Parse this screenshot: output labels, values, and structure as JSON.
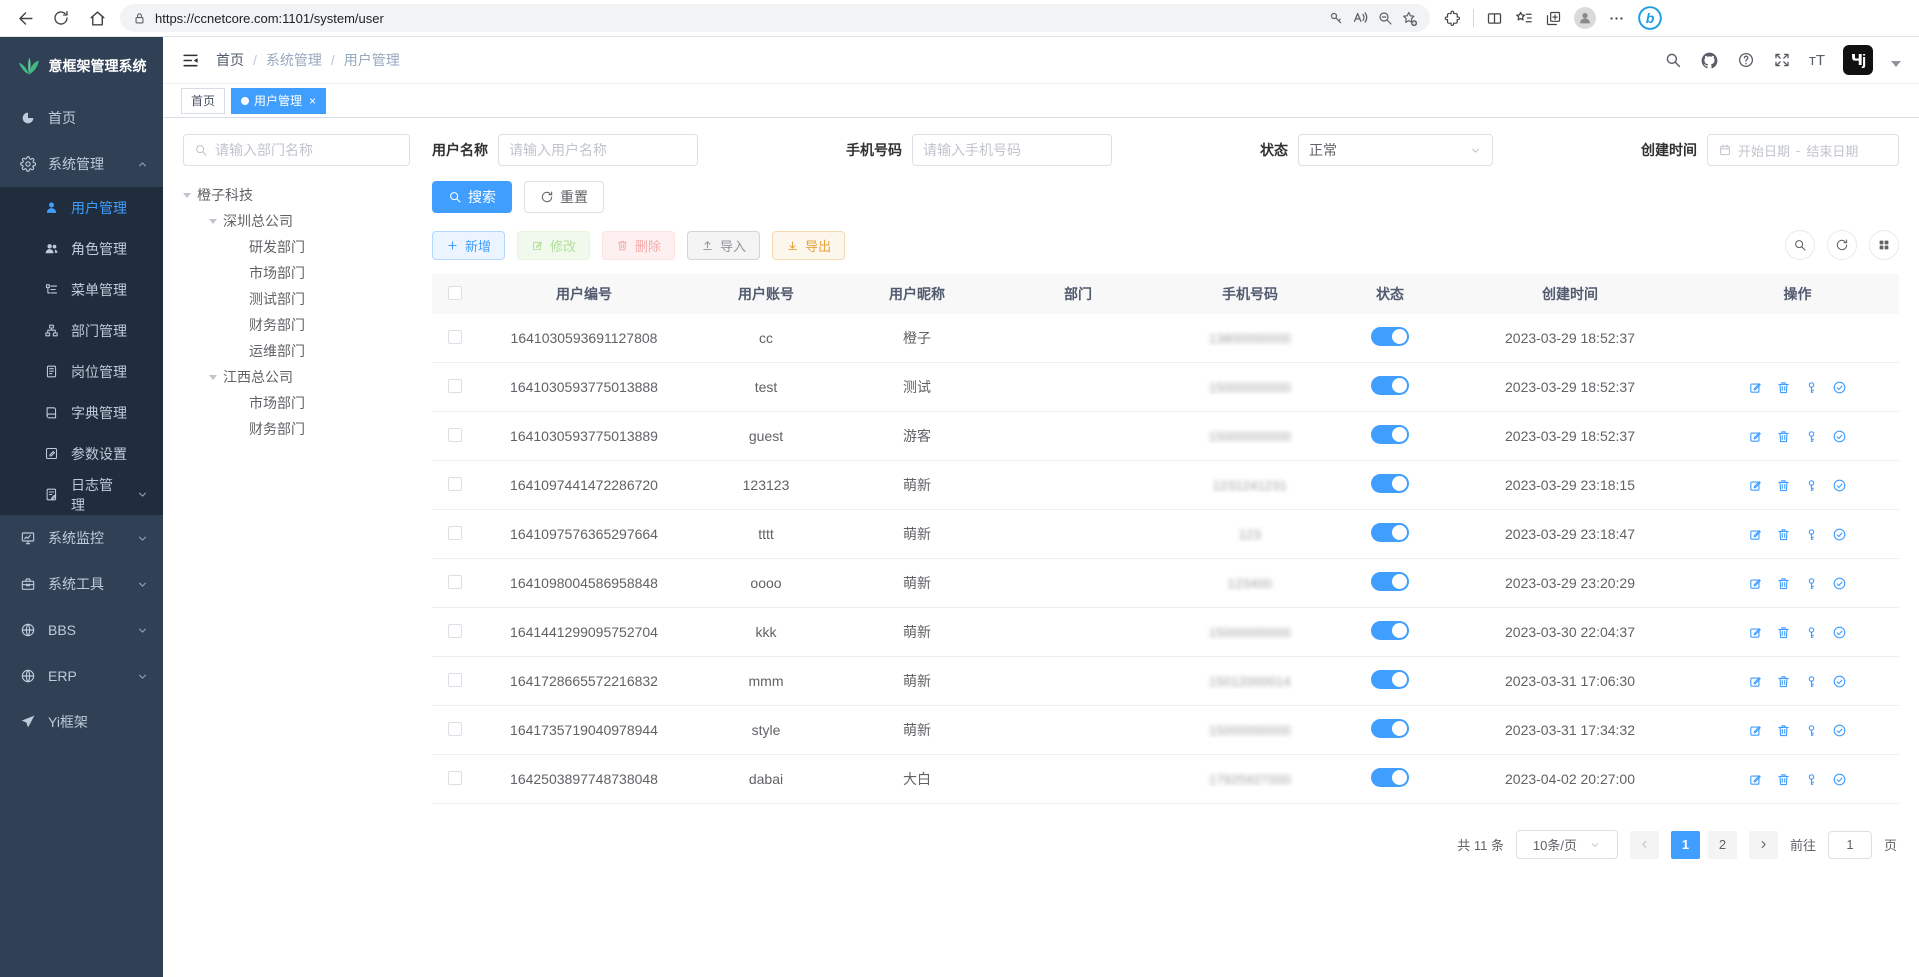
{
  "browser": {
    "url": "https://ccnetcore.com:1101/system/user"
  },
  "sidebar": {
    "logo": "意框架管理系统",
    "items": [
      {
        "label": "首页",
        "icon": "gauge"
      },
      {
        "label": "系统管理",
        "icon": "gear",
        "expanded": true,
        "children": [
          {
            "label": "用户管理",
            "icon": "user",
            "active": true
          },
          {
            "label": "角色管理",
            "icon": "users"
          },
          {
            "label": "菜单管理",
            "icon": "menulist"
          },
          {
            "label": "部门管理",
            "icon": "orgtree"
          },
          {
            "label": "岗位管理",
            "icon": "badge"
          },
          {
            "label": "字典管理",
            "icon": "book"
          },
          {
            "label": "参数设置",
            "icon": "editsq"
          },
          {
            "label": "日志管理",
            "icon": "logdoc",
            "arrow": "down"
          }
        ]
      },
      {
        "label": "系统监控",
        "icon": "monitor",
        "arrow": "down"
      },
      {
        "label": "系统工具",
        "icon": "toolbox",
        "arrow": "down"
      },
      {
        "label": "BBS",
        "icon": "globe",
        "arrow": "down"
      },
      {
        "label": "ERP",
        "icon": "globe",
        "arrow": "down"
      },
      {
        "label": "Yi框架",
        "icon": "send"
      }
    ]
  },
  "navbar": {
    "breadcrumb": [
      "首页",
      "系统管理",
      "用户管理"
    ]
  },
  "tabs": {
    "home": "首页",
    "current": "用户管理"
  },
  "dept": {
    "search_placeholder": "请输入部门名称",
    "tree": [
      {
        "label": "橙子科技",
        "level": 0,
        "caret": true
      },
      {
        "label": "深圳总公司",
        "level": 1,
        "caret": true
      },
      {
        "label": "研发部门",
        "level": 2
      },
      {
        "label": "市场部门",
        "level": 2
      },
      {
        "label": "测试部门",
        "level": 2
      },
      {
        "label": "财务部门",
        "level": 2
      },
      {
        "label": "运维部门",
        "level": 2
      },
      {
        "label": "江西总公司",
        "level": 1,
        "caret": true
      },
      {
        "label": "市场部门",
        "level": 2
      },
      {
        "label": "财务部门",
        "level": 2
      }
    ]
  },
  "filters": {
    "username_label": "用户名称",
    "username_placeholder": "请输入用户名称",
    "phone_label": "手机号码",
    "phone_placeholder": "请输入手机号码",
    "status_label": "状态",
    "status_value": "正常",
    "created_label": "创建时间",
    "date_start": "开始日期",
    "date_sep": "-",
    "date_end": "结束日期",
    "search": "搜索",
    "reset": "重置"
  },
  "toolbar": {
    "add": "新增",
    "edit": "修改",
    "delete": "删除",
    "import": "导入",
    "export": "导出"
  },
  "table": {
    "columns": [
      "用户编号",
      "用户账号",
      "用户昵称",
      "部门",
      "手机号码",
      "状态",
      "创建时间",
      "操作"
    ],
    "rows": [
      {
        "id": "1641030593691127808",
        "account": "cc",
        "nickname": "橙子",
        "dept": "",
        "phone": "13800000000",
        "phone_blurred": true,
        "status": true,
        "created": "2023-03-29 18:52:37",
        "actions": false
      },
      {
        "id": "1641030593775013888",
        "account": "test",
        "nickname": "测试",
        "dept": "",
        "phone": "15000000000",
        "phone_blurred": true,
        "status": true,
        "created": "2023-03-29 18:52:37",
        "actions": true
      },
      {
        "id": "1641030593775013889",
        "account": "guest",
        "nickname": "游客",
        "dept": "",
        "phone": "15000000000",
        "phone_blurred": true,
        "status": true,
        "created": "2023-03-29 18:52:37",
        "actions": true
      },
      {
        "id": "1641097441472286720",
        "account": "123123",
        "nickname": "萌新",
        "dept": "",
        "phone": "1231241231",
        "phone_blurred": true,
        "status": true,
        "created": "2023-03-29 23:18:15",
        "actions": true
      },
      {
        "id": "1641097576365297664",
        "account": "tttt",
        "nickname": "萌新",
        "dept": "",
        "phone": "123",
        "phone_blurred": true,
        "status": true,
        "created": "2023-03-29 23:18:47",
        "actions": true
      },
      {
        "id": "1641098004586958848",
        "account": "oooo",
        "nickname": "萌新",
        "dept": "",
        "phone": "123400",
        "phone_blurred": true,
        "status": true,
        "created": "2023-03-29 23:20:29",
        "actions": true
      },
      {
        "id": "1641441299095752704",
        "account": "kkk",
        "nickname": "萌新",
        "dept": "",
        "phone": "15000000000",
        "phone_blurred": true,
        "status": true,
        "created": "2023-03-30 22:04:37",
        "actions": true
      },
      {
        "id": "1641728665572216832",
        "account": "mmm",
        "nickname": "萌新",
        "dept": "",
        "phone": "15012000014",
        "phone_blurred": true,
        "status": true,
        "created": "2023-03-31 17:06:30",
        "actions": true
      },
      {
        "id": "1641735719040978944",
        "account": "style",
        "nickname": "萌新",
        "dept": "",
        "phone": "15000000000",
        "phone_blurred": true,
        "status": true,
        "created": "2023-03-31 17:34:32",
        "actions": true
      },
      {
        "id": "1642503897748738048",
        "account": "dabai",
        "nickname": "大白",
        "dept": "",
        "phone": "17925927000",
        "phone_blurred": true,
        "status": true,
        "created": "2023-04-02 20:27:00",
        "actions": true
      }
    ]
  },
  "pagination": {
    "total": "共 11 条",
    "page_size": "10条/页",
    "pages": [
      "1",
      "2"
    ],
    "active_page": "1",
    "goto_label": "前往",
    "goto_value": "1",
    "unit": "页"
  },
  "colors": {
    "accent": "#409eff",
    "sidebar_bg": "#304156",
    "submenu_bg": "#1f2d3d",
    "logo_green": "#43b883"
  }
}
